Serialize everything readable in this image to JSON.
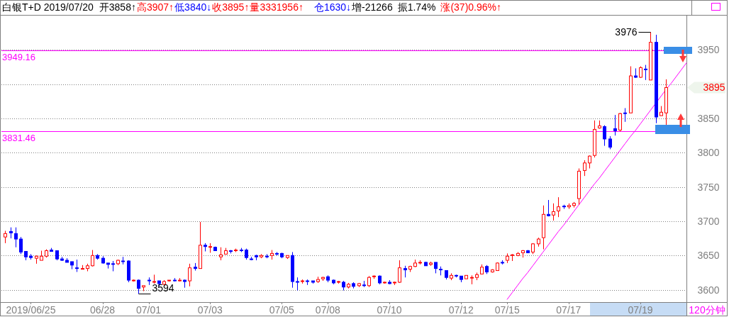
{
  "chart_data": {
    "type": "candlestick",
    "title": "白银T+D 2019/07/20",
    "xlabel": "120分钟",
    "categories": [
      null,
      null,
      null,
      null,
      null,
      "2019/06/25",
      null,
      null,
      null,
      null,
      null,
      null,
      null,
      null,
      null,
      null,
      null,
      null,
      null,
      "06/28",
      null,
      null,
      null,
      null,
      null,
      null,
      null,
      null,
      "07/01",
      null,
      null,
      null,
      null,
      null,
      null,
      null,
      null,
      null,
      null,
      null,
      "07/03",
      null,
      null,
      null,
      null,
      null,
      null,
      null,
      null,
      null,
      null,
      null,
      null,
      null,
      "07/05",
      null,
      null,
      null,
      null,
      null,
      null,
      null,
      null,
      "07/08",
      null,
      null,
      null,
      null,
      null,
      null,
      null,
      null,
      null,
      null,
      null,
      "07/10",
      null,
      null,
      null,
      null,
      null,
      null,
      null,
      null,
      null,
      null,
      null,
      null,
      null,
      "07/12",
      null,
      null,
      null,
      null,
      null,
      null,
      null,
      null,
      "07/15",
      null,
      null,
      null,
      null,
      null,
      null,
      null,
      null,
      null,
      null,
      null,
      "07/17",
      null,
      null,
      null,
      null,
      null,
      null,
      null,
      null,
      null,
      null,
      null,
      null,
      null,
      "07/19",
      null,
      null,
      null,
      null,
      null,
      null,
      null,
      null,
      null
    ],
    "ohlc": [
      [
        3677,
        3686,
        3668,
        3682
      ],
      [
        3685,
        3691,
        3675,
        3683
      ],
      [
        3682,
        3691,
        3662,
        3674
      ],
      [
        3674,
        3677,
        3652,
        3655
      ],
      [
        3656,
        3656,
        3643,
        3648
      ],
      [
        3649,
        3652,
        3644,
        3647
      ],
      [
        3646,
        3650,
        3638,
        3649
      ],
      [
        3643,
        3657,
        3643,
        3649
      ],
      [
        3649,
        3659,
        3647,
        3657
      ],
      [
        3658,
        3661,
        3656,
        3656
      ],
      [
        3657,
        3657,
        3643,
        3645
      ],
      [
        3645,
        3648,
        3642,
        3643
      ],
      [
        3643,
        3646,
        3640,
        3640
      ],
      [
        3641,
        3641,
        3630,
        3636
      ],
      [
        3632,
        3644,
        3626,
        3631
      ],
      [
        3630,
        3636,
        3630,
        3631
      ],
      [
        3631,
        3638,
        3627,
        3635
      ],
      [
        3635,
        3658,
        3634,
        3650
      ],
      [
        3650,
        3652,
        3644,
        3646
      ],
      [
        3646,
        3649,
        3638,
        3639
      ],
      [
        3639,
        3639,
        3631,
        3637
      ],
      [
        3638,
        3642,
        3627,
        3637
      ],
      [
        3638,
        3644,
        3636,
        3643
      ],
      [
        3642,
        3648,
        3637,
        3641
      ],
      [
        3642,
        3643,
        3611,
        3614
      ],
      [
        3613,
        3615,
        3612,
        3614
      ],
      [
        3614,
        3615,
        3594,
        3602
      ],
      [
        3604,
        3606,
        3598,
        3606
      ],
      [
        3614,
        3618,
        3607,
        3613
      ],
      [
        3611,
        3622,
        3609,
        3612
      ],
      [
        3613,
        3613,
        3605,
        3609
      ],
      [
        3608,
        3614,
        3606,
        3612
      ],
      [
        3613,
        3614,
        3612,
        3614
      ],
      [
        3614,
        3617,
        3612,
        3613
      ],
      [
        3613,
        3617,
        3612,
        3614
      ],
      [
        3614,
        3615,
        3603,
        3612
      ],
      [
        3613,
        3638,
        3605,
        3632
      ],
      [
        3633,
        3639,
        3628,
        3631
      ],
      [
        3631,
        3699,
        3631,
        3665
      ],
      [
        3665,
        3668,
        3656,
        3663
      ],
      [
        3662,
        3668,
        3654,
        3663
      ],
      [
        3662,
        3663,
        3657,
        3657
      ],
      [
        3648,
        3662,
        3643,
        3651
      ],
      [
        3652,
        3661,
        3652,
        3657
      ],
      [
        3657,
        3658,
        3653,
        3656
      ],
      [
        3657,
        3660,
        3655,
        3658
      ],
      [
        3658,
        3661,
        3655,
        3657
      ],
      [
        3658,
        3660,
        3644,
        3647
      ],
      [
        3645,
        3648,
        3643,
        3644
      ],
      [
        3650,
        3651,
        3643,
        3648
      ],
      [
        3648,
        3652,
        3646,
        3650
      ],
      [
        3649,
        3652,
        3646,
        3648
      ],
      [
        3650,
        3658,
        3644,
        3653
      ],
      [
        3653,
        3655,
        3650,
        3652
      ],
      [
        3653,
        3654,
        3646,
        3648
      ],
      [
        3647,
        3650,
        3645,
        3650
      ],
      [
        3650,
        3655,
        3603,
        3612
      ],
      [
        3612,
        3618,
        3599,
        3611
      ],
      [
        3612,
        3615,
        3609,
        3613
      ],
      [
        3613,
        3615,
        3607,
        3612
      ],
      [
        3613,
        3613,
        3609,
        3611
      ],
      [
        3612,
        3619,
        3610,
        3615
      ],
      [
        3616,
        3619,
        3613,
        3618
      ],
      [
        3619,
        3621,
        3611,
        3614
      ],
      [
        3614,
        3615,
        3608,
        3610
      ],
      [
        3611,
        3613,
        3609,
        3612
      ],
      [
        3611,
        3613,
        3599,
        3604
      ],
      [
        3604,
        3610,
        3602,
        3608
      ],
      [
        3609,
        3611,
        3602,
        3605
      ],
      [
        3606,
        3610,
        3604,
        3609
      ],
      [
        3607,
        3613,
        3604,
        3606
      ],
      [
        3606,
        3620,
        3604,
        3618
      ],
      [
        3619,
        3621,
        3616,
        3620
      ],
      [
        3620,
        3621,
        3608,
        3610
      ],
      [
        3610,
        3612,
        3609,
        3611
      ],
      [
        3611,
        3614,
        3608,
        3609
      ],
      [
        3610,
        3612,
        3607,
        3611
      ],
      [
        3611,
        3643,
        3610,
        3632
      ],
      [
        3631,
        3635,
        3618,
        3629
      ],
      [
        3630,
        3635,
        3626,
        3634
      ],
      [
        3634,
        3644,
        3633,
        3639
      ],
      [
        3639,
        3643,
        3637,
        3640
      ],
      [
        3640,
        3641,
        3635,
        3635
      ],
      [
        3637,
        3641,
        3635,
        3639
      ],
      [
        3640,
        3640,
        3624,
        3631
      ],
      [
        3630,
        3634,
        3621,
        3629
      ],
      [
        3628,
        3628,
        3615,
        3618
      ],
      [
        3617,
        3624,
        3614,
        3621
      ],
      [
        3621,
        3622,
        3618,
        3620
      ],
      [
        3620,
        3620,
        3611,
        3615
      ],
      [
        3616,
        3621,
        3616,
        3621
      ],
      [
        3617,
        3621,
        3608,
        3618
      ],
      [
        3618,
        3625,
        3614,
        3622
      ],
      [
        3623,
        3637,
        3623,
        3633
      ],
      [
        3634,
        3636,
        3623,
        3626
      ],
      [
        3626,
        3630,
        3625,
        3629
      ],
      [
        3628,
        3640,
        3628,
        3639
      ],
      [
        3640,
        3643,
        3637,
        3639
      ],
      [
        3643,
        3653,
        3639,
        3649
      ],
      [
        3650,
        3652,
        3642,
        3651
      ],
      [
        3650,
        3655,
        3649,
        3653
      ],
      [
        3654,
        3658,
        3647,
        3657
      ],
      [
        3657,
        3658,
        3654,
        3654
      ],
      [
        3655,
        3668,
        3652,
        3667
      ],
      [
        3667,
        3676,
        3663,
        3674
      ],
      [
        3676,
        3723,
        3659,
        3710
      ],
      [
        3710,
        3731,
        3707,
        3708
      ],
      [
        3709,
        3726,
        3701,
        3714
      ],
      [
        3715,
        3735,
        3706,
        3721
      ],
      [
        3722,
        3724,
        3718,
        3721
      ],
      [
        3721,
        3726,
        3718,
        3723
      ],
      [
        3723,
        3728,
        3720,
        3726
      ],
      [
        3733,
        3777,
        3724,
        3773
      ],
      [
        3774,
        3789,
        3766,
        3785
      ],
      [
        3785,
        3796,
        3777,
        3795
      ],
      [
        3796,
        3847,
        3793,
        3834
      ],
      [
        3836,
        3847,
        3835,
        3839
      ],
      [
        3838,
        3840,
        3810,
        3820
      ],
      [
        3820,
        3824,
        3805,
        3808
      ],
      [
        3835,
        3855,
        3825,
        3832
      ],
      [
        3833,
        3858,
        3831,
        3857
      ],
      [
        3858,
        3865,
        3845,
        3857
      ],
      [
        3858,
        3926,
        3858,
        3912
      ],
      [
        3912,
        3923,
        3909,
        3910
      ],
      [
        3910,
        3926,
        3909,
        3924
      ],
      [
        3922,
        3928,
        3906,
        3921
      ],
      [
        3906,
        3976,
        3906,
        3961
      ],
      [
        3961,
        3972,
        3843,
        3852
      ],
      [
        3854,
        3868,
        3854,
        3859
      ],
      [
        3858,
        3907,
        3840,
        3895
      ],
      null,
      null,
      null,
      null
    ],
    "colors": [
      "#ff0000",
      "#0000ff",
      "#0000ff",
      "#0000ff",
      "#0000ff",
      "#0000ff",
      "#ff0000",
      "#ff0000",
      "#ff0000",
      "#0000ff",
      "#0000ff",
      "#0000ff",
      "#0000ff",
      "#0000ff",
      "#0000ff",
      "#ff0000",
      "#ff0000",
      "#ff0000",
      "#0000ff",
      "#0000ff",
      "#0000ff",
      "#0000ff",
      "#ff0000",
      "#0000ff",
      "#0000ff",
      "#ff0000",
      "#0000ff",
      "#ff0000",
      "#0000ff",
      "#ff0000",
      "#0000ff",
      "#ff0000",
      "#ff0000",
      "#0000ff",
      "#ff0000",
      "#0000ff",
      "#ff0000",
      "#0000ff",
      "#ff0000",
      "#0000ff",
      "#ff0000",
      "#0000ff",
      "#ff0000",
      "#ff0000",
      "#0000ff",
      "#ff0000",
      "#0000ff",
      "#0000ff",
      "#0000ff",
      "#0000ff",
      "#ff0000",
      "#0000ff",
      "#ff0000",
      "#0000ff",
      "#0000ff",
      "#ff0000",
      "#0000ff",
      "#0000ff",
      "#ff0000",
      "#0000ff",
      "#0000ff",
      "#ff0000",
      "#ff0000",
      "#0000ff",
      "#0000ff",
      "#ff0000",
      "#0000ff",
      "#ff0000",
      "#0000ff",
      "#ff0000",
      "#0000ff",
      "#ff0000",
      "#ff0000",
      "#0000ff",
      "#ff0000",
      "#0000ff",
      "#ff0000",
      "#ff0000",
      "#0000ff",
      "#ff0000",
      "#ff0000",
      "#ff0000",
      "#0000ff",
      "#ff0000",
      "#0000ff",
      "#0000ff",
      "#0000ff",
      "#ff0000",
      "#0000ff",
      "#0000ff",
      "#ff0000",
      "#ff0000",
      "#ff0000",
      "#ff0000",
      "#0000ff",
      "#ff0000",
      "#ff0000",
      "#0000ff",
      "#ff0000",
      "#ff0000",
      "#ff0000",
      "#ff0000",
      "#0000ff",
      "#ff0000",
      "#ff0000",
      "#ff0000",
      "#0000ff",
      "#ff0000",
      "#ff0000",
      "#0000ff",
      "#ff0000",
      "#ff0000",
      "#ff0000",
      "#ff0000",
      "#ff0000",
      "#ff0000",
      "#ff0000",
      "#0000ff",
      "#0000ff",
      "#0000ff",
      "#ff0000",
      "#0000ff",
      "#ff0000",
      "#0000ff",
      "#ff0000",
      "#0000ff",
      "#ff0000",
      "#0000ff",
      "#ff0000",
      "#ff0000",
      null,
      null,
      null,
      null
    ],
    "ylim": [
      3582,
      4001
    ],
    "yticks": [
      3600,
      3650,
      3700,
      3750,
      3800,
      3850,
      {
        "value": 3900,
        "label": null
      },
      3950
    ],
    "grid": "y",
    "ref_lines": [
      {
        "axis": "y",
        "value": 3949.16,
        "label": "3949.16",
        "color": "#ff00ff"
      },
      {
        "axis": "y",
        "value": 3831.46,
        "label": "3831.46",
        "color": "#ff00ff"
      }
    ],
    "series": [
      {
        "type": "line",
        "color": "#ff00ff",
        "values": [
          null,
          null,
          null,
          null,
          null,
          null,
          null,
          null,
          null,
          null,
          null,
          null,
          null,
          null,
          null,
          null,
          null,
          null,
          null,
          null,
          null,
          null,
          null,
          null,
          null,
          null,
          null,
          null,
          null,
          null,
          null,
          null,
          null,
          null,
          null,
          null,
          null,
          null,
          null,
          null,
          null,
          null,
          null,
          null,
          null,
          null,
          null,
          null,
          null,
          null,
          null,
          null,
          null,
          null,
          null,
          null,
          null,
          null,
          null,
          null,
          null,
          null,
          null,
          null,
          null,
          null,
          null,
          null,
          null,
          null,
          null,
          null,
          null,
          null,
          null,
          null,
          null,
          null,
          null,
          null,
          null,
          null,
          null,
          null,
          null,
          null,
          null,
          null,
          null,
          null,
          null,
          null,
          null,
          null,
          null,
          null,
          null,
          null,
          3586,
          3596,
          3606,
          3616,
          3625,
          3635,
          3645,
          3655,
          3665,
          3675,
          3685,
          3694,
          3704,
          3714,
          3724,
          3734,
          3744,
          3754,
          3763,
          3773,
          3783,
          3793,
          3803,
          3813,
          3823,
          3832,
          3842,
          3852,
          3862,
          3872,
          3882,
          3892,
          3901,
          3911,
          3921,
          3931
        ]
      }
    ],
    "annotations": [
      "开3858↑",
      "高3907↑",
      "低3840↓",
      "收3895↑",
      "量3331956↑",
      "仓1630↓",
      "增-21266",
      "振1.74%",
      "涨(37)0.96%↑",
      "3895",
      "3976",
      "3594"
    ]
  }
}
